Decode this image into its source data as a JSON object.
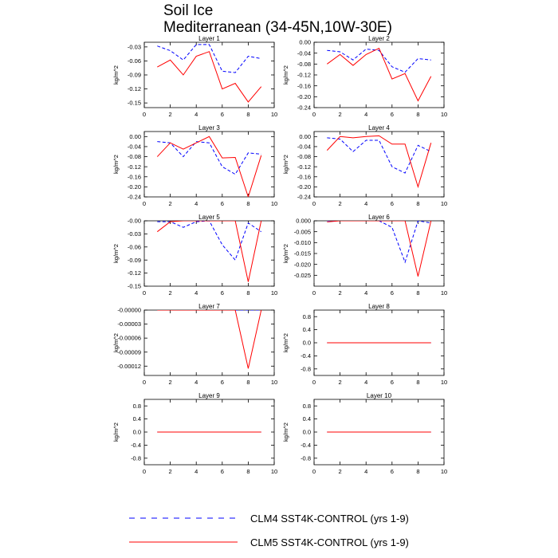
{
  "figure": {
    "title_line1": "Soil Ice",
    "title_line2": "Mediterranean (34-45N,10W-30E)"
  },
  "legend": {
    "items": [
      {
        "label": "CLM4 SST4K-CONTROL (yrs 1-9)",
        "color": "#0000ff",
        "dash": "dashed"
      },
      {
        "label": "CLM5 SST4K-CONTROL (yrs 1-9)",
        "color": "#ff0000",
        "dash": "solid"
      }
    ]
  },
  "colors": {
    "clm4": "#0000ff",
    "clm5": "#ff0000",
    "axis": "#000000"
  },
  "chart_data": [
    {
      "type": "line",
      "title": "Layer 1",
      "ylabel": "kg/m^2",
      "x": [
        1,
        2,
        3,
        4,
        5,
        6,
        7,
        8,
        9
      ],
      "xlim": [
        0,
        10
      ],
      "xticks": [
        0,
        2,
        4,
        6,
        8,
        10
      ],
      "ylim": [
        -0.16,
        -0.02
      ],
      "yticks": [
        -0.03,
        -0.06,
        -0.09,
        -0.12,
        -0.15
      ],
      "ytick_labels": [
        "-0.03",
        "-0.06",
        "-0.09",
        "-0.12",
        "-0.15"
      ],
      "series": [
        {
          "name": "CLM4 SST4K-CONTROL (yrs 1-9)",
          "values": [
            -0.028,
            -0.038,
            -0.058,
            -0.025,
            -0.025,
            -0.082,
            -0.085,
            -0.05,
            -0.055
          ]
        },
        {
          "name": "CLM5 SST4K-CONTROL (yrs 1-9)",
          "values": [
            -0.073,
            -0.058,
            -0.09,
            -0.05,
            -0.04,
            -0.12,
            -0.108,
            -0.148,
            -0.115
          ]
        }
      ]
    },
    {
      "type": "line",
      "title": "Layer 2",
      "ylabel": "kg/m^2",
      "x": [
        1,
        2,
        3,
        4,
        5,
        6,
        7,
        8,
        9
      ],
      "xlim": [
        0,
        10
      ],
      "xticks": [
        0,
        2,
        4,
        6,
        8,
        10
      ],
      "ylim": [
        -0.24,
        0.0
      ],
      "yticks": [
        -0.24,
        -0.2,
        -0.16,
        -0.12,
        -0.08,
        -0.04,
        0.0
      ],
      "ytick_labels": [
        "-0.24",
        "-0.20",
        "-0.16",
        "-0.12",
        "-0.08",
        "-0.04",
        "0.00"
      ],
      "series": [
        {
          "name": "CLM4 SST4K-CONTROL (yrs 1-9)",
          "values": [
            -0.03,
            -0.035,
            -0.065,
            -0.025,
            -0.03,
            -0.09,
            -0.11,
            -0.06,
            -0.065
          ]
        },
        {
          "name": "CLM5 SST4K-CONTROL (yrs 1-9)",
          "values": [
            -0.08,
            -0.045,
            -0.085,
            -0.045,
            -0.022,
            -0.135,
            -0.115,
            -0.215,
            -0.125
          ]
        }
      ]
    },
    {
      "type": "line",
      "title": "Layer 3",
      "ylabel": "kg/m^2",
      "x": [
        1,
        2,
        3,
        4,
        5,
        6,
        7,
        8,
        9
      ],
      "xlim": [
        0,
        10
      ],
      "xticks": [
        0,
        2,
        4,
        6,
        8,
        10
      ],
      "ylim": [
        -0.24,
        0.02
      ],
      "yticks": [
        -0.24,
        -0.2,
        -0.16,
        -0.12,
        -0.08,
        -0.04,
        0.0
      ],
      "ytick_labels": [
        "-0.24",
        "-0.20",
        "-0.16",
        "-0.12",
        "-0.08",
        "-0.04",
        "0.00"
      ],
      "series": [
        {
          "name": "CLM4 SST4K-CONTROL (yrs 1-9)",
          "values": [
            -0.02,
            -0.025,
            -0.08,
            -0.02,
            -0.025,
            -0.12,
            -0.15,
            -0.065,
            -0.07
          ]
        },
        {
          "name": "CLM5 SST4K-CONTROL (yrs 1-9)",
          "values": [
            -0.08,
            -0.025,
            -0.05,
            -0.025,
            0.0,
            -0.085,
            -0.083,
            -0.24,
            -0.075
          ]
        }
      ]
    },
    {
      "type": "line",
      "title": "Layer 4",
      "ylabel": "kg/m^2",
      "x": [
        1,
        2,
        3,
        4,
        5,
        6,
        7,
        8,
        9
      ],
      "xlim": [
        0,
        10
      ],
      "xticks": [
        0,
        2,
        4,
        6,
        8,
        10
      ],
      "ylim": [
        -0.24,
        0.02
      ],
      "yticks": [
        -0.24,
        -0.2,
        -0.16,
        -0.12,
        -0.08,
        -0.04,
        0.0
      ],
      "ytick_labels": [
        "-0.24",
        "-0.20",
        "-0.16",
        "-0.12",
        "-0.08",
        "-0.04",
        "0.00"
      ],
      "series": [
        {
          "name": "CLM4 SST4K-CONTROL (yrs 1-9)",
          "values": [
            -0.005,
            -0.01,
            -0.06,
            -0.015,
            -0.015,
            -0.12,
            -0.145,
            -0.035,
            -0.06
          ]
        },
        {
          "name": "CLM5 SST4K-CONTROL (yrs 1-9)",
          "values": [
            -0.055,
            0.0,
            -0.005,
            0.0,
            0.003,
            -0.03,
            -0.03,
            -0.2,
            -0.025
          ]
        }
      ]
    },
    {
      "type": "line",
      "title": "Layer 5",
      "ylabel": "kg/m^2",
      "x": [
        1,
        2,
        3,
        4,
        5,
        6,
        7,
        8,
        9
      ],
      "xlim": [
        0,
        10
      ],
      "xticks": [
        0,
        2,
        4,
        6,
        8,
        10
      ],
      "ylim": [
        -0.15,
        0.0
      ],
      "yticks": [
        -0.15,
        -0.12,
        -0.09,
        -0.06,
        -0.03,
        0.0
      ],
      "ytick_labels": [
        "-0.15",
        "-0.12",
        "-0.09",
        "-0.06",
        "-0.03",
        "-0.00"
      ],
      "series": [
        {
          "name": "CLM4 SST4K-CONTROL (yrs 1-9)",
          "values": [
            -0.002,
            -0.002,
            -0.015,
            -0.002,
            0.0,
            -0.055,
            -0.09,
            -0.005,
            -0.025
          ]
        },
        {
          "name": "CLM5 SST4K-CONTROL (yrs 1-9)",
          "values": [
            -0.025,
            -0.002,
            0.0,
            0.0,
            0.0,
            0.0,
            0.0,
            -0.14,
            0.0
          ]
        }
      ]
    },
    {
      "type": "line",
      "title": "Layer 6",
      "ylabel": "kg/m^2",
      "x": [
        1,
        2,
        3,
        4,
        5,
        6,
        7,
        8,
        9
      ],
      "xlim": [
        0,
        10
      ],
      "xticks": [
        0,
        2,
        4,
        6,
        8,
        10
      ],
      "ylim": [
        -0.03,
        0.0
      ],
      "yticks": [
        -0.025,
        -0.02,
        -0.015,
        -0.01,
        -0.005,
        0.0
      ],
      "ytick_labels": [
        "-0.025",
        "-0.020",
        "-0.015",
        "-0.010",
        "-0.005",
        "0.000"
      ],
      "series": [
        {
          "name": "CLM4 SST4K-CONTROL (yrs 1-9)",
          "values": [
            0.0,
            0.0,
            0.0,
            0.0,
            0.0,
            -0.003,
            -0.019,
            0.0,
            -0.001
          ]
        },
        {
          "name": "CLM5 SST4K-CONTROL (yrs 1-9)",
          "values": [
            -0.0005,
            0.0,
            0.0,
            0.0,
            0.0,
            0.0,
            0.0,
            -0.0255,
            0.0
          ]
        }
      ]
    },
    {
      "type": "line",
      "title": "Layer 7",
      "ylabel": "kg/m^2",
      "x": [
        1,
        2,
        3,
        4,
        5,
        6,
        7,
        8,
        9
      ],
      "xlim": [
        0,
        10
      ],
      "xticks": [
        0,
        2,
        4,
        6,
        8,
        10
      ],
      "ylim": [
        -0.00014,
        0.0
      ],
      "yticks": [
        -0.00012,
        -9e-05,
        -6e-05,
        -3e-05,
        0.0
      ],
      "ytick_labels": [
        "-0.00012",
        "-0.00009",
        "-0.00006",
        "-0.00003",
        "-0.00000"
      ],
      "series": [
        {
          "name": "CLM4 SST4K-CONTROL (yrs 1-9)",
          "values": [
            0,
            0,
            0,
            0,
            0,
            0,
            0,
            0,
            0
          ]
        },
        {
          "name": "CLM5 SST4K-CONTROL (yrs 1-9)",
          "values": [
            0,
            0,
            0,
            0,
            0,
            0,
            0,
            -0.000125,
            0
          ]
        }
      ]
    },
    {
      "type": "line",
      "title": "Layer 8",
      "ylabel": "kg/m^2",
      "x": [
        1,
        2,
        3,
        4,
        5,
        6,
        7,
        8,
        9
      ],
      "xlim": [
        0,
        10
      ],
      "xticks": [
        0,
        2,
        4,
        6,
        8,
        10
      ],
      "ylim": [
        -1.0,
        1.0
      ],
      "yticks": [
        -0.8,
        -0.4,
        0.0,
        0.4,
        0.8
      ],
      "ytick_labels": [
        "-0.8",
        "-0.4",
        "0.0",
        "0.4",
        "0.8"
      ],
      "series": [
        {
          "name": "CLM4 SST4K-CONTROL (yrs 1-9)",
          "values": [
            0,
            0,
            0,
            0,
            0,
            0,
            0,
            0,
            0
          ]
        },
        {
          "name": "CLM5 SST4K-CONTROL (yrs 1-9)",
          "values": [
            0,
            0,
            0,
            0,
            0,
            0,
            0,
            0,
            0
          ]
        }
      ]
    },
    {
      "type": "line",
      "title": "Layer 9",
      "ylabel": "kg/m^2",
      "x": [
        1,
        2,
        3,
        4,
        5,
        6,
        7,
        8,
        9
      ],
      "xlim": [
        0,
        10
      ],
      "xticks": [
        0,
        2,
        4,
        6,
        8,
        10
      ],
      "ylim": [
        -1.0,
        1.0
      ],
      "yticks": [
        -0.8,
        -0.4,
        0.0,
        0.4,
        0.8
      ],
      "ytick_labels": [
        "-0.8",
        "-0.4",
        "0.0",
        "0.4",
        "0.8"
      ],
      "series": [
        {
          "name": "CLM4 SST4K-CONTROL (yrs 1-9)",
          "values": [
            0,
            0,
            0,
            0,
            0,
            0,
            0,
            0,
            0
          ]
        },
        {
          "name": "CLM5 SST4K-CONTROL (yrs 1-9)",
          "values": [
            0,
            0,
            0,
            0,
            0,
            0,
            0,
            0,
            0
          ]
        }
      ]
    },
    {
      "type": "line",
      "title": "Layer 10",
      "ylabel": "kg/m^2",
      "x": [
        1,
        2,
        3,
        4,
        5,
        6,
        7,
        8,
        9
      ],
      "xlim": [
        0,
        10
      ],
      "xticks": [
        0,
        2,
        4,
        6,
        8,
        10
      ],
      "ylim": [
        -1.0,
        1.0
      ],
      "yticks": [
        -0.8,
        -0.4,
        0.0,
        0.4,
        0.8
      ],
      "ytick_labels": [
        "-0.8",
        "-0.4",
        "0.0",
        "0.4",
        "0.8"
      ],
      "series": [
        {
          "name": "CLM4 SST4K-CONTROL (yrs 1-9)",
          "values": [
            0,
            0,
            0,
            0,
            0,
            0,
            0,
            0,
            0
          ]
        },
        {
          "name": "CLM5 SST4K-CONTROL (yrs 1-9)",
          "values": [
            0,
            0,
            0,
            0,
            0,
            0,
            0,
            0,
            0
          ]
        }
      ]
    }
  ]
}
